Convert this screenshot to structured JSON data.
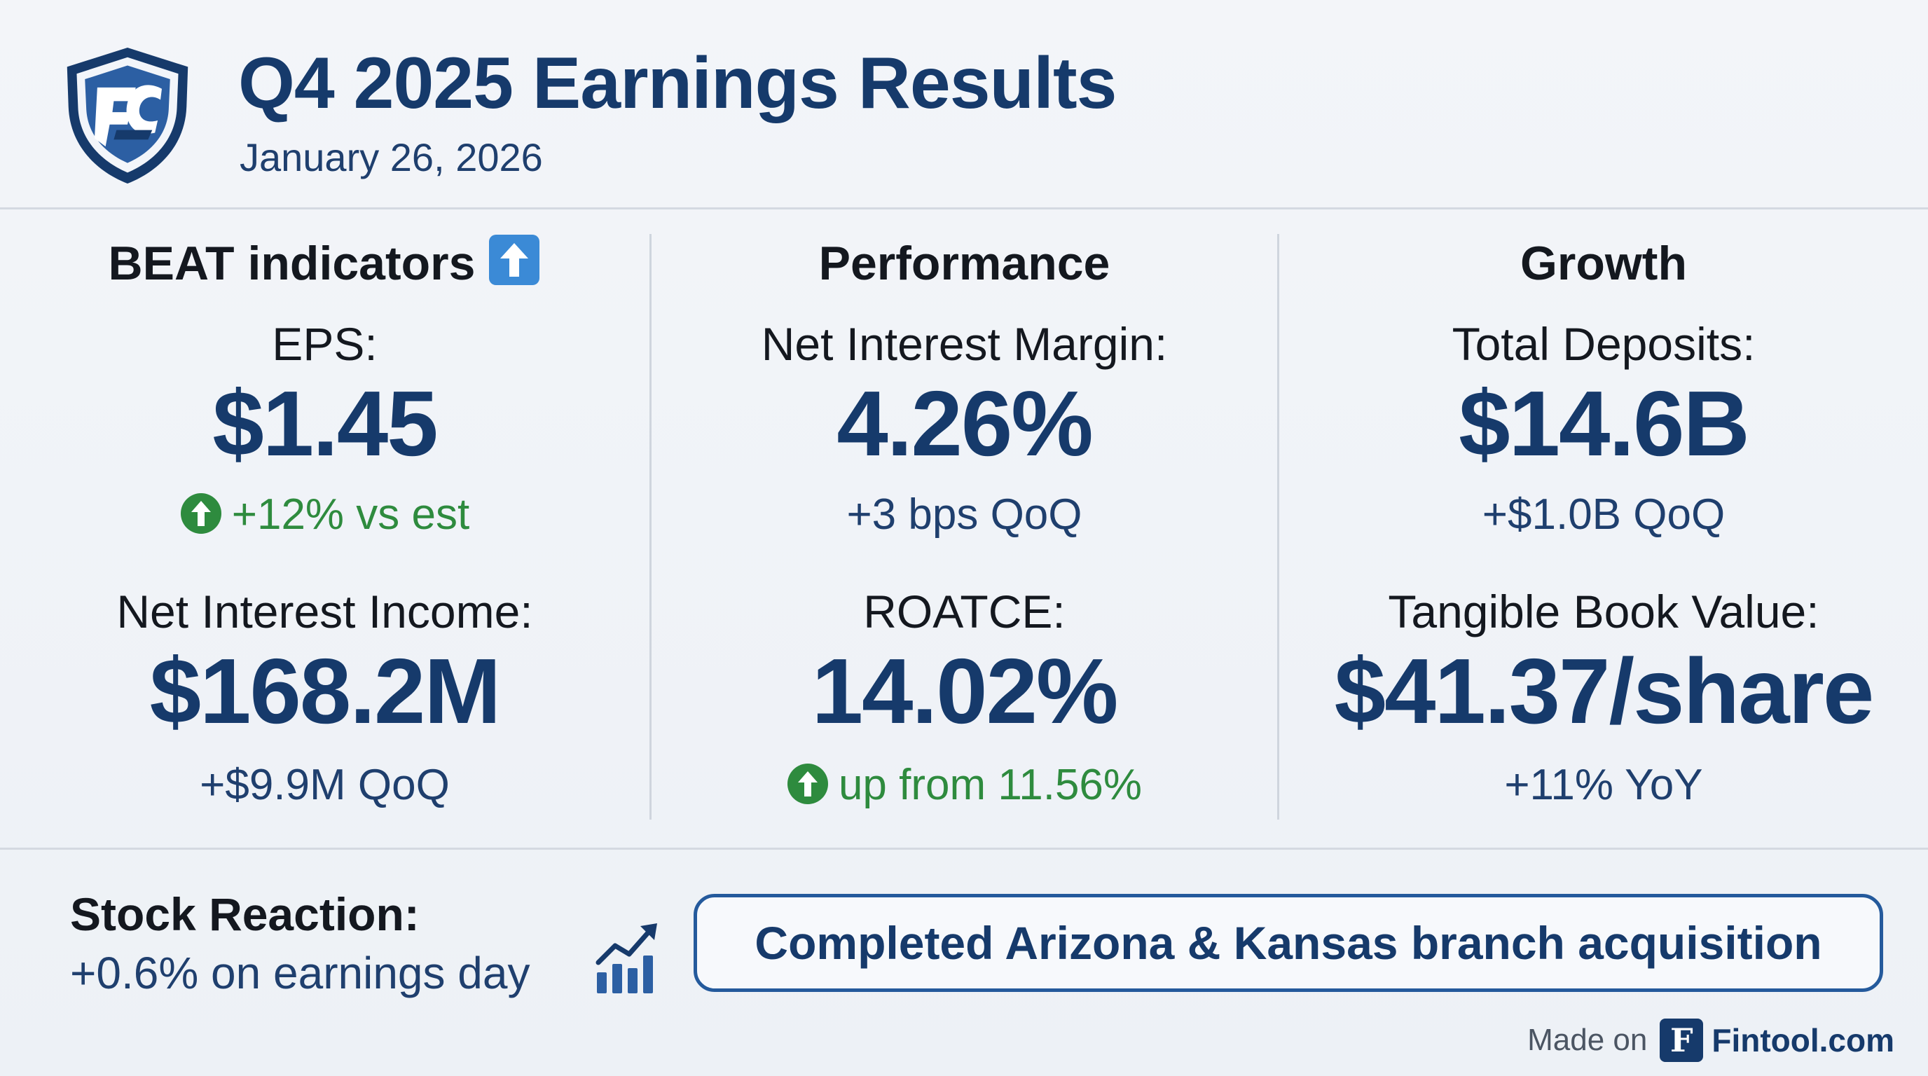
{
  "colors": {
    "navy": "#163a6b",
    "blue": "#245a9c",
    "green": "#2e8b3e",
    "text": "#14181f",
    "divider": "#d4d9e1"
  },
  "header": {
    "logo_icon": "shield-logo-icon",
    "title": "Q4 2025 Earnings Results",
    "date": "January 26, 2026"
  },
  "columns": [
    {
      "heading": "BEAT indicators",
      "heading_icon": "up-arrow-box-icon",
      "metrics": [
        {
          "label": "EPS:",
          "value": "$1.45",
          "sub": "+12% vs est",
          "sub_icon": "up-arrow-circle-icon",
          "sub_color": "green"
        },
        {
          "label": "Net Interest Income:",
          "value": "$168.2M",
          "sub": "+$9.9M QoQ"
        }
      ]
    },
    {
      "heading": "Performance",
      "metrics": [
        {
          "label": "Net Interest Margin:",
          "value": "4.26%",
          "sub": "+3 bps QoQ"
        },
        {
          "label": "ROATCE:",
          "value": "14.02%",
          "sub": "up from 11.56%",
          "sub_icon": "up-arrow-circle-icon",
          "sub_color": "green"
        }
      ]
    },
    {
      "heading": "Growth",
      "metrics": [
        {
          "label": "Total Deposits:",
          "value": "$14.6B",
          "sub": "+$1.0B QoQ"
        },
        {
          "label": "Tangible Book Value:",
          "value": "$41.37/share",
          "sub": "+11% YoY"
        }
      ]
    }
  ],
  "footer": {
    "stock_title": "Stock Reaction:",
    "stock_sub": "+0.6% on earnings day",
    "stock_icon": "growth-chart-icon",
    "callout": "Completed Arizona & Kansas branch acquisition",
    "made_on_label": "Made on",
    "brand_logo_letter": "F",
    "brand_name": "Fintool.com"
  }
}
